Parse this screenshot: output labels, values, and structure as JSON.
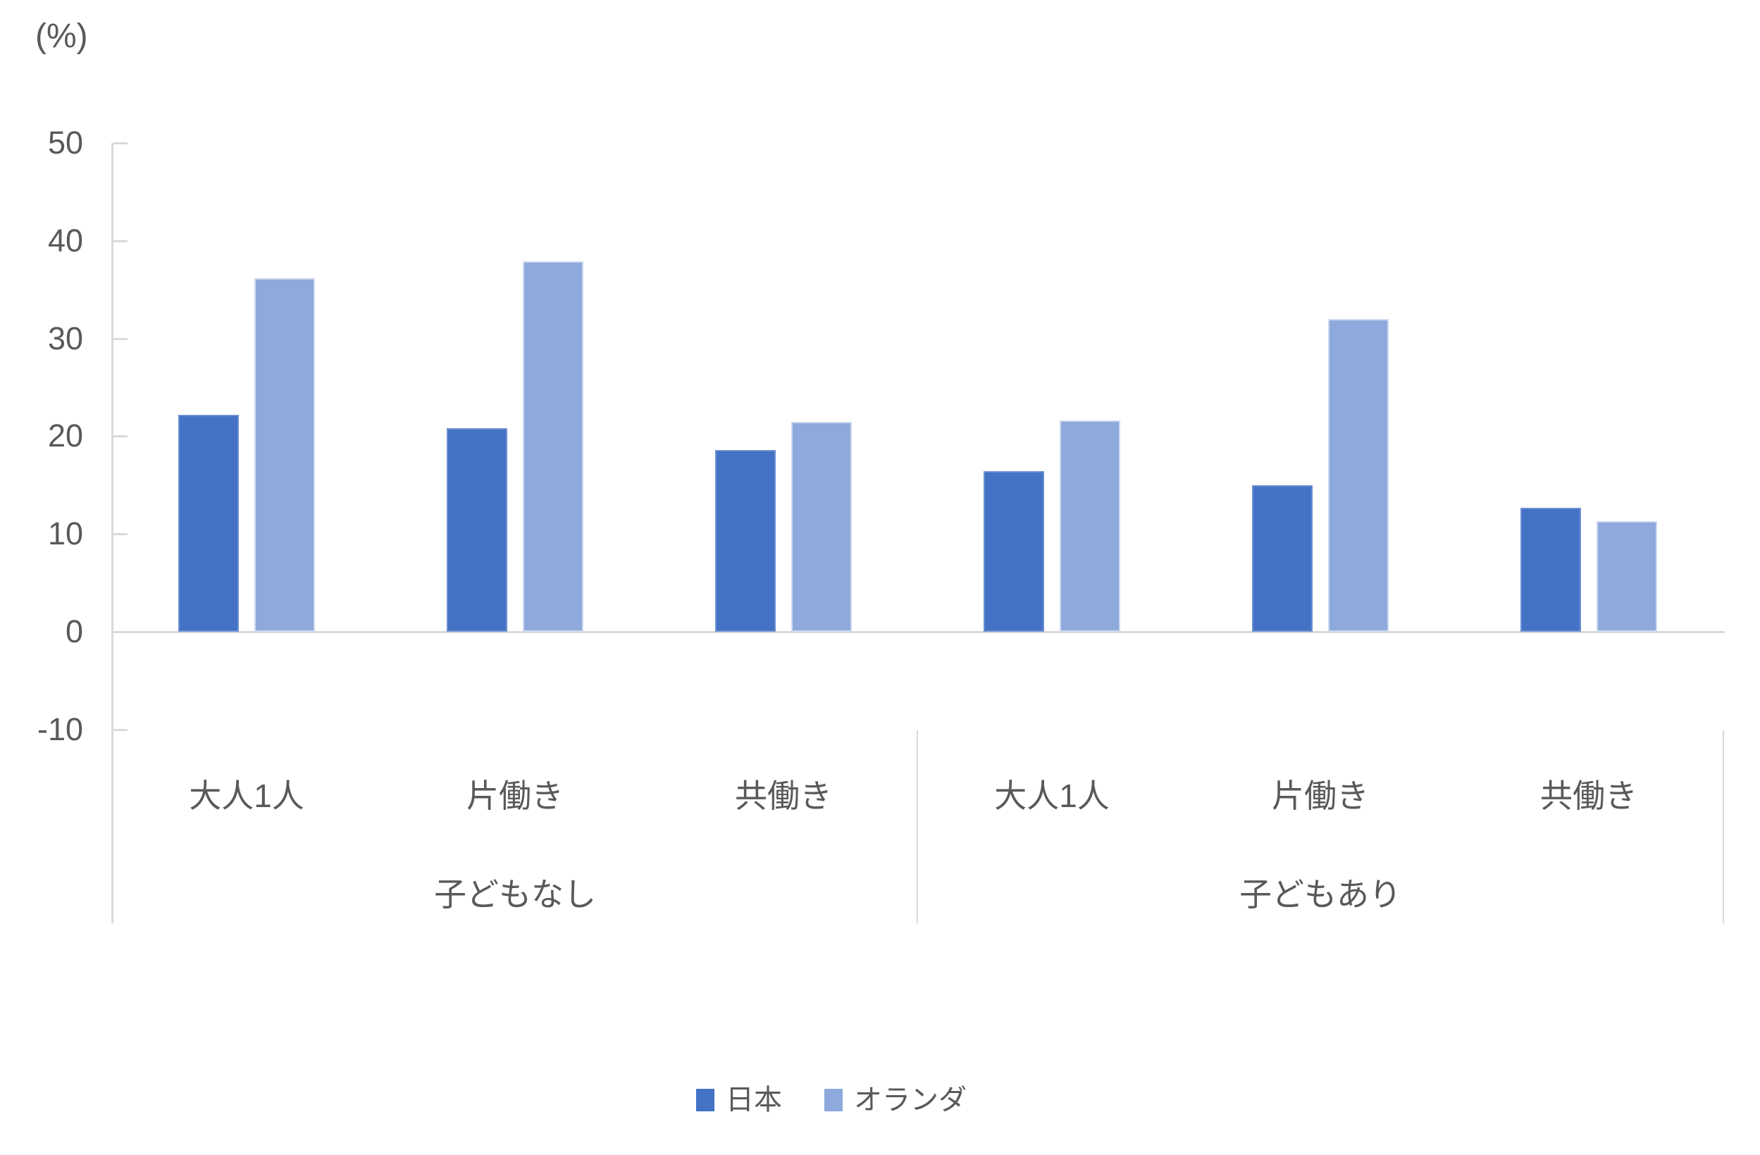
{
  "chart_data": {
    "type": "bar",
    "title": "",
    "unit_label": "(%)",
    "categories": [
      "大人1人",
      "片働き",
      "共働き",
      "大人1人",
      "片働き",
      "共働き"
    ],
    "groups": [
      {
        "label": "子どもなし",
        "category_indexes": [
          0,
          1,
          2
        ]
      },
      {
        "label": "子どもあり",
        "category_indexes": [
          3,
          4,
          5
        ]
      }
    ],
    "series": [
      {
        "name": "日本",
        "color": "#4472C4",
        "values": [
          22.2,
          20.8,
          18.6,
          16.4,
          15.0,
          12.7
        ]
      },
      {
        "name": "オランダ",
        "color": "#8EA9DB",
        "values": [
          36.2,
          37.9,
          21.5,
          21.6,
          32.0,
          11.3
        ]
      }
    ],
    "y_ticks": [
      50,
      40,
      30,
      20,
      10,
      0,
      -10
    ],
    "ylim": [
      -10,
      50
    ],
    "grid": false,
    "legend_position": "bottom",
    "axis_color": "#D9D9D9",
    "text_color": "#595959"
  }
}
